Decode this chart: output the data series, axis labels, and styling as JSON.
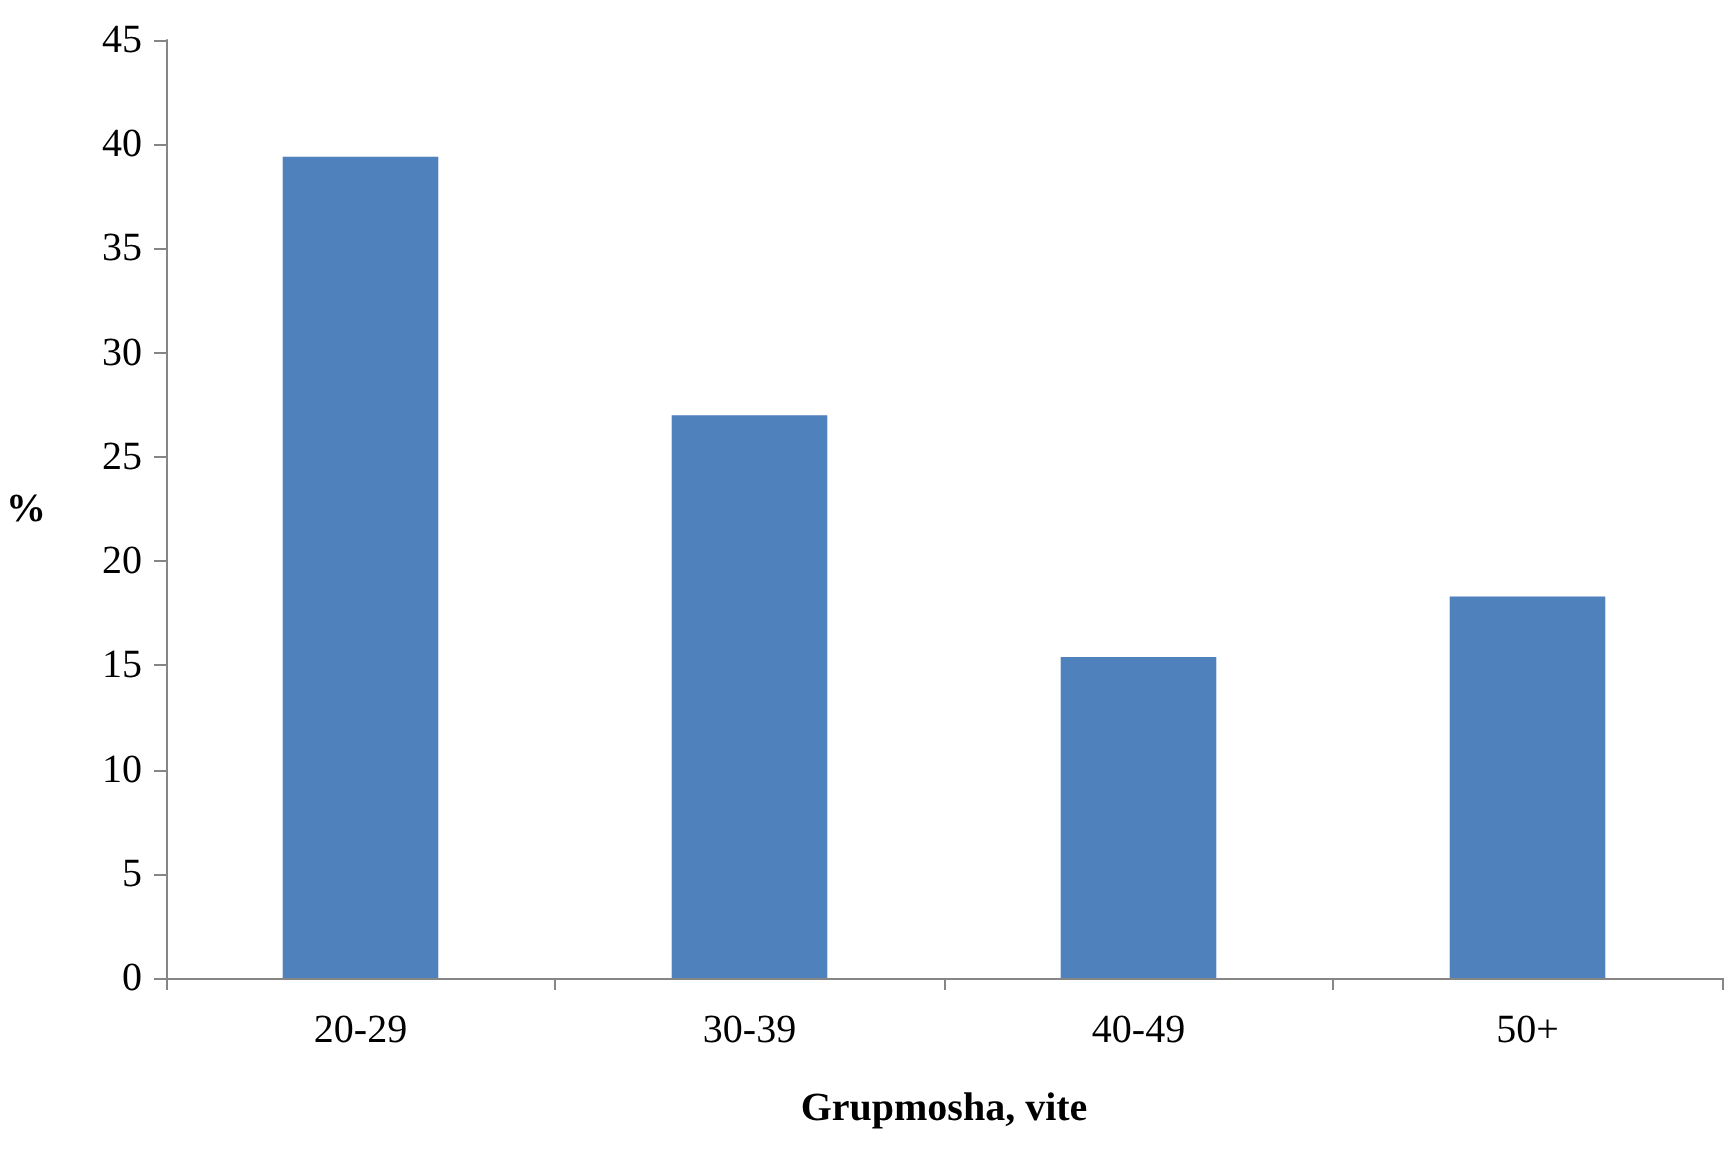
{
  "chart_data": {
    "type": "bar",
    "xlabel": "Grupmosha, vite",
    "ylabel": "%",
    "categories": [
      "20-29",
      "30-39",
      "40-49",
      "50+"
    ],
    "values": [
      39.4,
      27,
      15.4,
      18.3
    ],
    "color": "#4f81bd",
    "ylim": [
      0,
      45
    ],
    "yticks": [
      0,
      5,
      10,
      15,
      20,
      25,
      30,
      35,
      40,
      45
    ],
    "grid": false
  }
}
